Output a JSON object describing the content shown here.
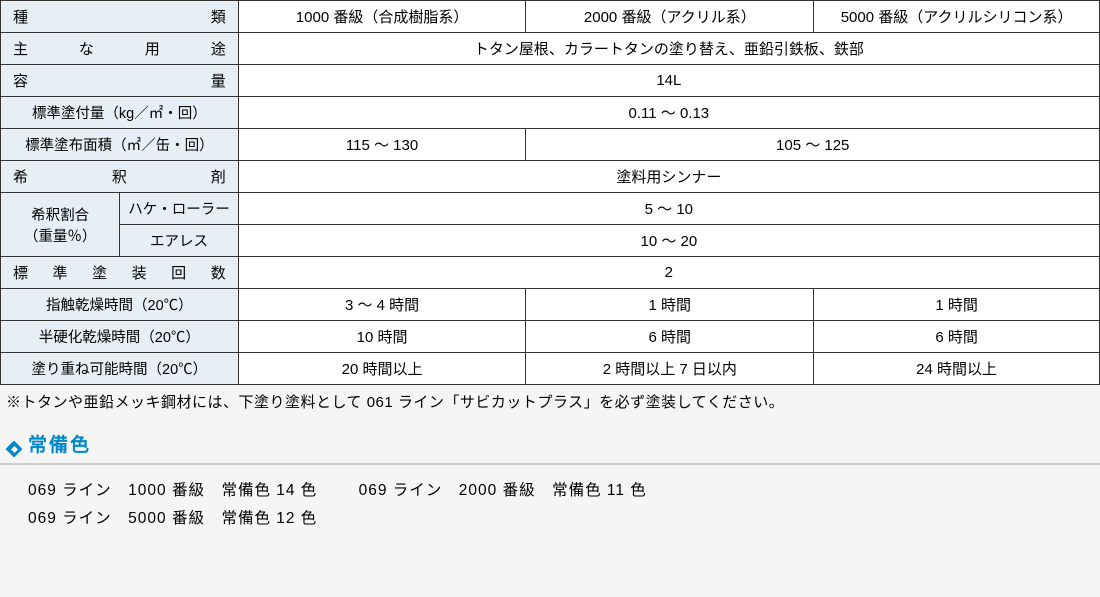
{
  "table": {
    "header_bg": "#e6eef6",
    "border_color": "#333333",
    "row1_label": "種類",
    "row1_c1": "1000 番級（合成樹脂系）",
    "row1_c2": "2000 番級（アクリル系）",
    "row1_c3": "5000 番級（アクリルシリコン系）",
    "row2_label": "主な用途",
    "row2_val": "トタン屋根、カラートタンの塗り替え、亜鉛引鉄板、鉄部",
    "row3_label": "容量",
    "row3_val": "14L",
    "row4_label": "標準塗付量（kg／㎡・回）",
    "row4_val": "0.11 ～ 0.13",
    "row5_label": "標準塗布面積（㎡／缶・回）",
    "row5_c1": "115 ～ 130",
    "row5_c23": "105 ～ 125",
    "row6_label": "希釈剤",
    "row6_val": "塗料用シンナー",
    "row7_label_a": "希釈割合",
    "row7_label_b": "（重量％）",
    "row7_sub1": "ハケ・ローラー",
    "row7_val1": "5 ～ 10",
    "row8_sub": "エアレス",
    "row8_val": "10 ～ 20",
    "row9_label": "標準塗装回数",
    "row9_val": "2",
    "row10_label": "指触乾燥時間（20℃）",
    "row10_c1": "3 ～ 4 時間",
    "row10_c2": "1 時間",
    "row10_c3": "1 時間",
    "row11_label": "半硬化乾燥時間（20℃）",
    "row11_c1": "10 時間",
    "row11_c2": "6 時間",
    "row11_c3": "6 時間",
    "row12_label": "塗り重ね可能時間（20℃）",
    "row12_c1": "20 時間以上",
    "row12_c2": "2 時間以上 7 日以内",
    "row12_c3": "24 時間以上"
  },
  "note": "※トタンや亜鉛メッキ鋼材には、下塗り塗料として 061 ライン「サビカットプラス」を必ず塗装してください。",
  "section_title": "常備色",
  "section_color": "#0088cc",
  "rule_color": "#cfcfcf",
  "colors": {
    "l1a": "069 ライン　1000 番級　常備色 14 色",
    "l1b": "069 ライン　2000 番級　常備色 11 色",
    "l2a": "069 ライン　5000 番級　常備色 12 色"
  }
}
